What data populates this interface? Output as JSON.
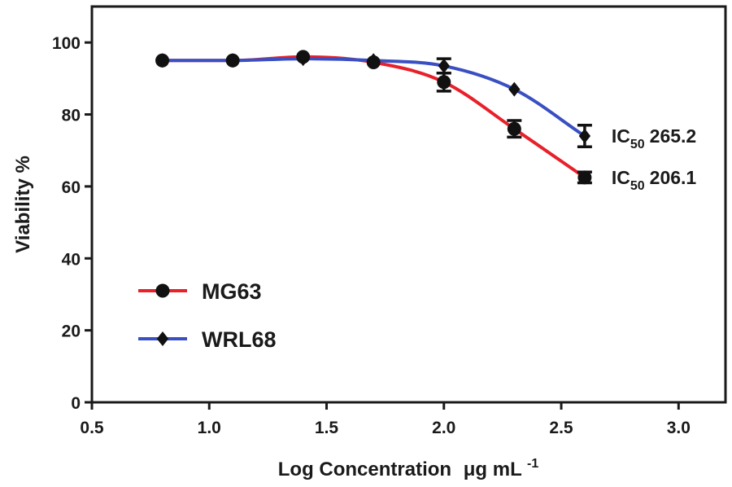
{
  "chart_data": {
    "type": "line",
    "title": "",
    "xlabel": "Log Concentration",
    "xlabel_unit_base": "μg mL",
    "xlabel_unit_exp": "-1",
    "ylabel": "Viability %",
    "xlim": [
      0.5,
      3.2
    ],
    "ylim": [
      0,
      110
    ],
    "xticks": [
      0.5,
      1.0,
      1.5,
      2.0,
      2.5,
      3.0
    ],
    "xtick_labels": [
      "0.5",
      "1.0",
      "1.5",
      "2.0",
      "2.5",
      "3.0"
    ],
    "yticks": [
      0,
      20,
      40,
      60,
      80,
      100
    ],
    "ytick_labels": [
      "0",
      "20",
      "40",
      "60",
      "80",
      "100"
    ],
    "legend_position": "bottom-left",
    "series": [
      {
        "name": "MG63",
        "color": "#e8202a",
        "marker": "circle",
        "x": [
          0.8,
          1.1,
          1.4,
          1.7,
          2.0,
          2.3,
          2.6
        ],
        "y": [
          95,
          95,
          96,
          94.5,
          89,
          76,
          62.5
        ],
        "error": [
          0,
          0,
          0,
          0,
          2.5,
          2.3,
          1.5
        ],
        "annotation": {
          "prefix": "IC",
          "sub": "50",
          "value": "206.1"
        }
      },
      {
        "name": "WRL68",
        "color": "#3a4fc1",
        "marker": "diamond",
        "x": [
          0.8,
          1.1,
          1.4,
          1.7,
          2.0,
          2.3,
          2.6
        ],
        "y": [
          95,
          95,
          95.5,
          95,
          93.5,
          87,
          74
        ],
        "error": [
          0,
          0,
          0,
          0,
          2,
          0,
          3
        ],
        "annotation": {
          "prefix": "IC",
          "sub": "50",
          "value": "265.2"
        }
      }
    ]
  }
}
